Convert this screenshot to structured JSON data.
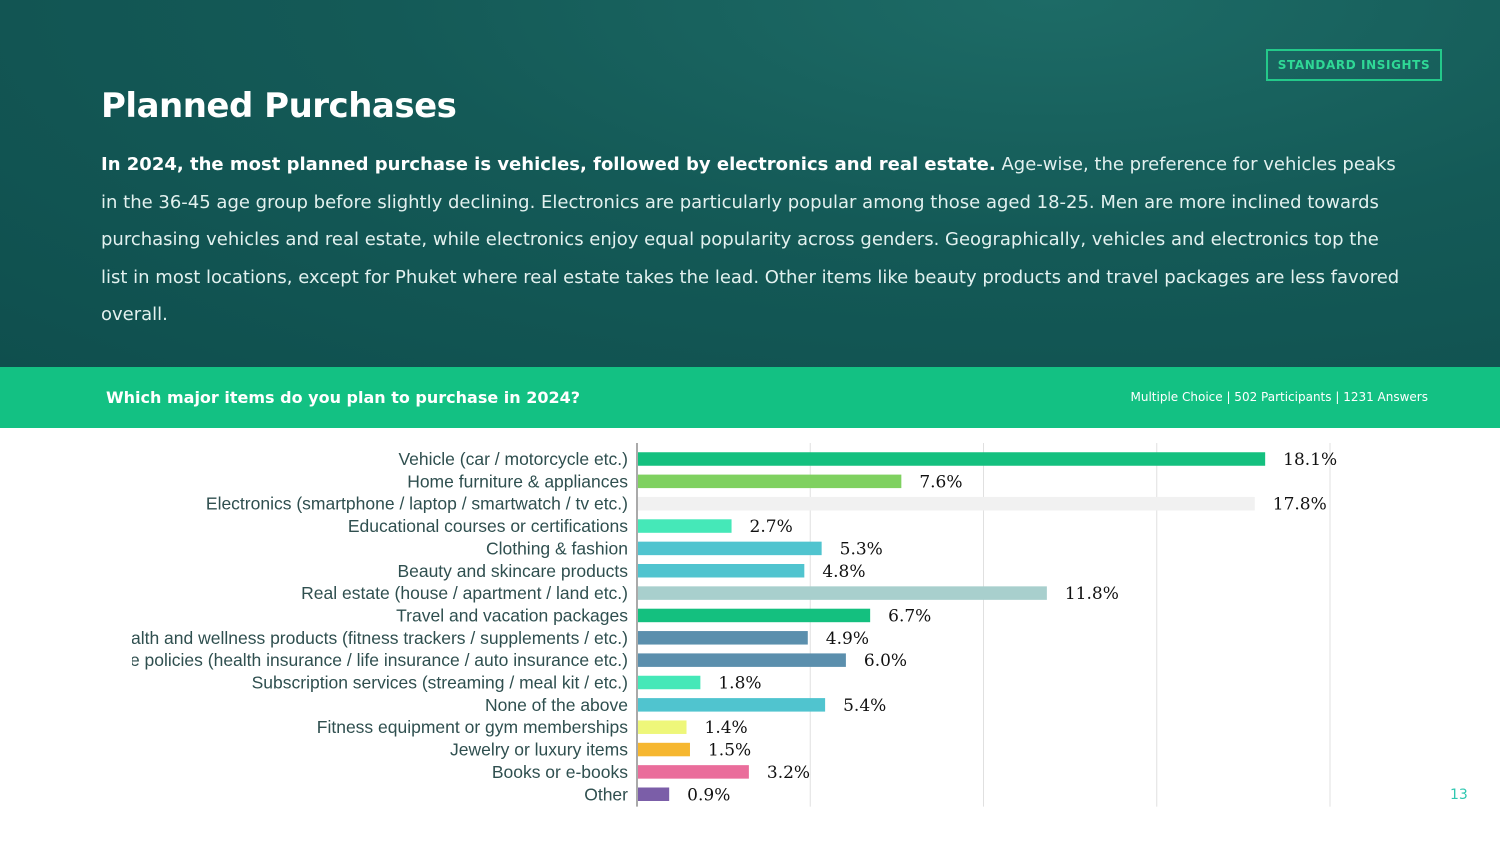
{
  "header": {
    "badge": "STANDARD INSIGHTS",
    "title": "Planned Purchases",
    "summary_lead": "In 2024, the most planned purchase is vehicles, followed by electronics and real estate.",
    "summary_body": " Age-wise, the preference for vehicles peaks in the 36-45 age group before slightly declining. Electronics are particularly popular among those aged 18-25. Men are more inclined towards purchasing vehicles and real estate, while electronics enjoy equal popularity across genders. Geographically, vehicles and electronics top the list in most locations, except for Phuket where real estate takes the lead. Other items like beauty products and travel packages are less favored overall."
  },
  "question_bar": {
    "question": "Which major items do you plan to purchase in 2024?",
    "meta": "Multiple Choice | 502 Participants | 1231 Answers"
  },
  "page_number": "13",
  "chart_data": {
    "type": "bar",
    "orientation": "horizontal",
    "categories": [
      "Vehicle (car / motorcycle etc.)",
      "Home furniture & appliances",
      "Electronics (smartphone / laptop / smartwatch / tv etc.)",
      "Educational courses or certifications",
      "Clothing & fashion",
      "Beauty and skincare products",
      "Real estate (house / apartment / land etc.)",
      "Travel and vacation packages",
      "Health and wellness products (fitness trackers / supplements / etc.)",
      "Insurance policies (health insurance / life insurance / auto insurance etc.)",
      "Subscription services (streaming / meal kit / etc.)",
      "None of the above",
      "Fitness equipment or gym memberships",
      "Jewelry or luxury items",
      "Books or e-books",
      "Other"
    ],
    "values": [
      18.1,
      7.6,
      17.8,
      2.7,
      5.3,
      4.8,
      11.8,
      6.7,
      4.9,
      6.0,
      1.8,
      5.4,
      1.4,
      1.5,
      3.2,
      0.9
    ],
    "value_labels": [
      "18.1%",
      "7.6%",
      "17.8%",
      "2.7%",
      "5.3%",
      "4.8%",
      "11.8%",
      "6.7%",
      "4.9%",
      "6.0%",
      "1.8%",
      "5.4%",
      "1.4%",
      "1.5%",
      "3.2%",
      "0.9%"
    ],
    "colors": [
      "#14c07f",
      "#7fd160",
      "#f1f1f1",
      "#45e8b8",
      "#50c4cf",
      "#50c4cf",
      "#a8cfcd",
      "#14c07f",
      "#5b8fad",
      "#5b8fad",
      "#45e8b8",
      "#50c4cf",
      "#eef77a",
      "#f6b730",
      "#ea6d9b",
      "#7b5ea8"
    ],
    "xlim": [
      0,
      20
    ],
    "grid": true,
    "x_gridlines_at": [
      5,
      10,
      15,
      20
    ],
    "title": "",
    "xlabel": "",
    "ylabel": ""
  }
}
